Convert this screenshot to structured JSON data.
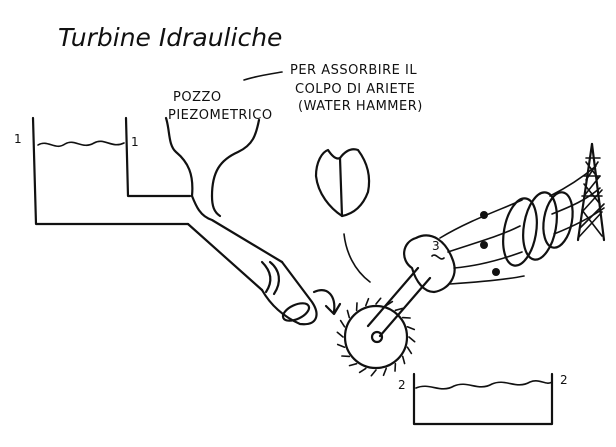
{
  "title": "Turbine Idrauliche",
  "labels": {
    "pozzo_line1": "POZZO",
    "pozzo_line2": "PIEZOMETRICO",
    "note_line1": "PER ASSORBIRE IL",
    "note_line2": "COLPO DI ARIETE",
    "note_line3": "(WATER HAMMER)",
    "generator_number": "3",
    "upper_level_left": "1",
    "upper_level_right": "1",
    "lower_level_left": "2",
    "lower_level_right": "2"
  },
  "colors": {
    "ink": "#111111",
    "background": "#ffffff"
  }
}
